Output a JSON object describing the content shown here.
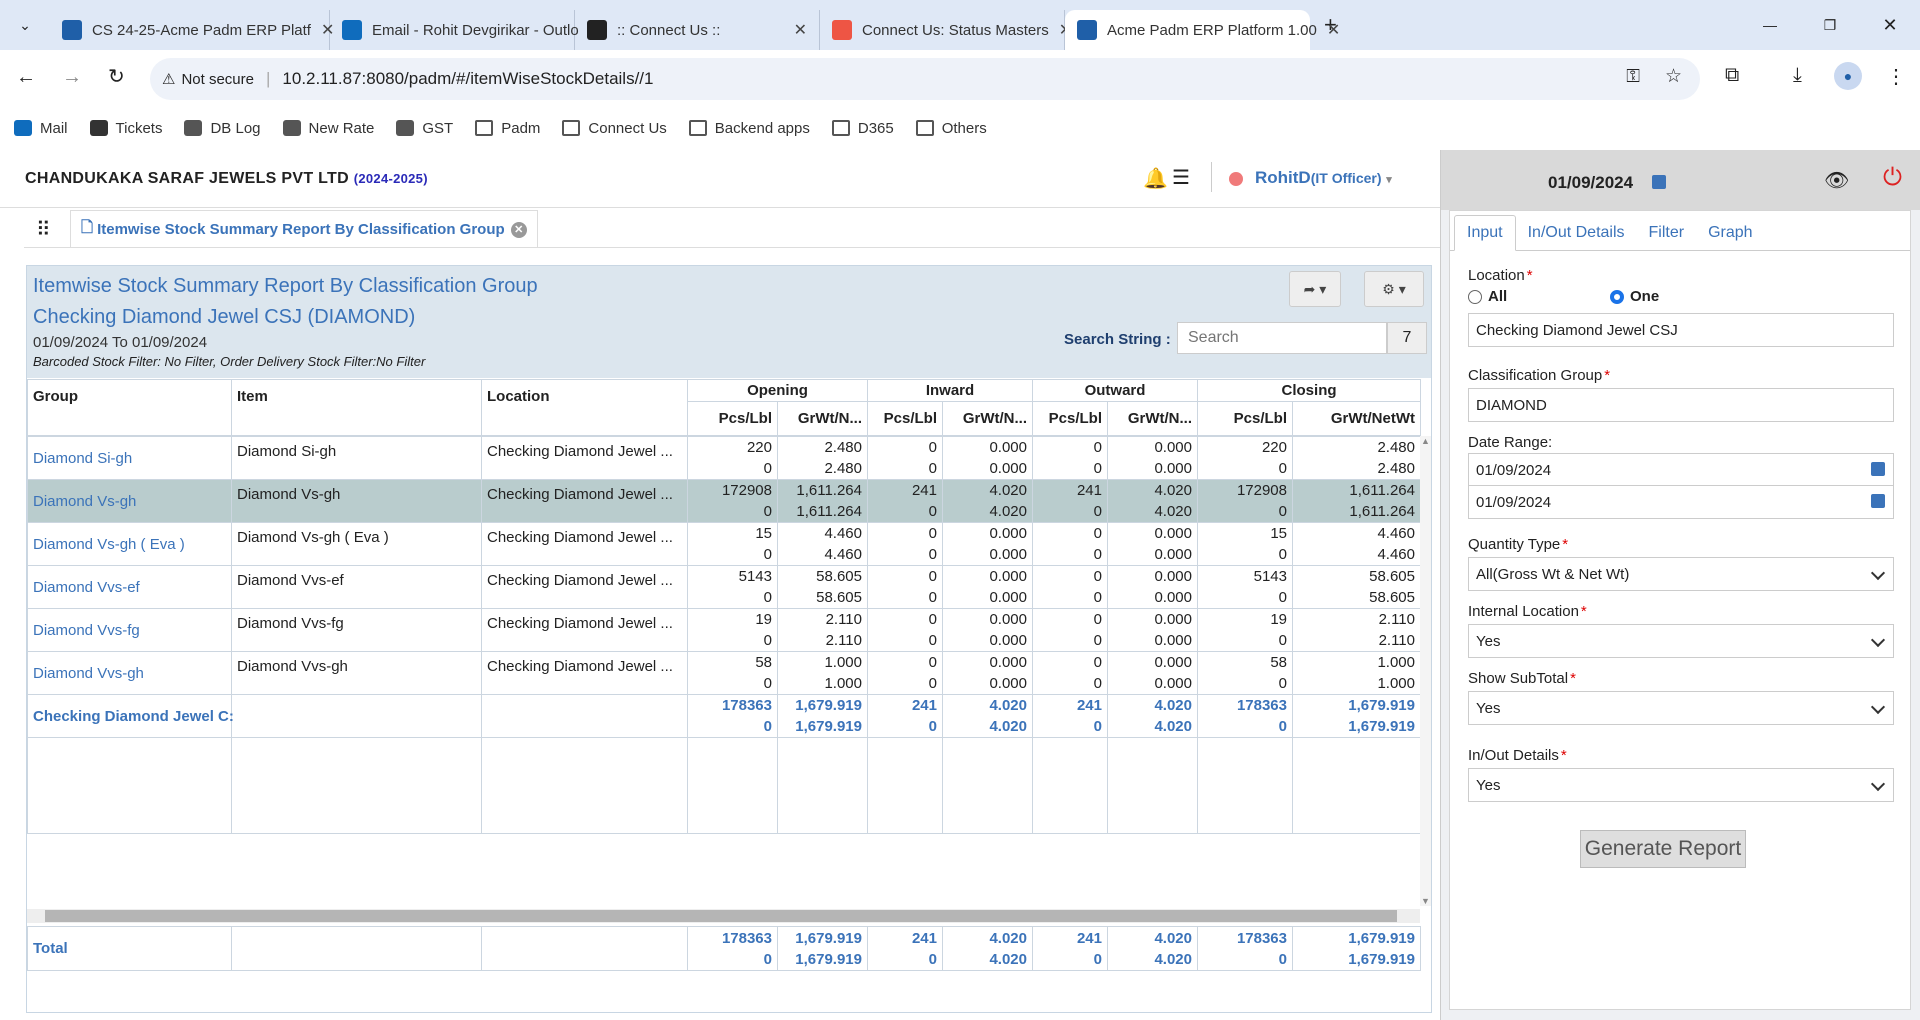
{
  "browser": {
    "tabs": [
      {
        "title": "CS 24-25-Acme Padm ERP Platf",
        "color": "#1f5fa8"
      },
      {
        "title": "Email - Rohit Devgirikar - Outlo",
        "color": "#0f6cbd"
      },
      {
        "title": ":: Connect Us ::",
        "color": "#222"
      },
      {
        "title": "Connect Us: Status Masters",
        "color": "#e54"
      },
      {
        "title": "Acme Padm ERP Platform 1.00",
        "color": "#1f5fa8"
      }
    ],
    "not_secure": "Not secure",
    "url": "10.2.11.87:8080/padm/#/itemWiseStockDetails//1",
    "bookmarks": [
      "Mail",
      "Tickets",
      "DB Log",
      "New Rate",
      "GST",
      "Padm",
      "Connect Us",
      "Backend apps",
      "D365",
      "Others"
    ]
  },
  "header": {
    "company": "CHANDUKAKA SARAF JEWELS PVT LTD",
    "year": "(2024-2025)",
    "user": "RohitD",
    "role": "(IT Officer)",
    "date": "01/09/2024"
  },
  "page_tab": "Itemwise Stock Summary Report By Classification Group",
  "report": {
    "title": "Itemwise Stock Summary Report By Classification Group",
    "subtitle": "Checking Diamond Jewel CSJ (DIAMOND)",
    "range": "01/09/2024 To 01/09/2024",
    "filter": "Barcoded Stock Filter: No Filter, Order Delivery Stock Filter:No Filter",
    "search_label": "Search String :",
    "search_placeholder": "Search",
    "count": "7"
  },
  "columns": {
    "group": "Group",
    "item": "Item",
    "location": "Location",
    "opening": "Opening",
    "inward": "Inward",
    "outward": "Outward",
    "closing": "Closing",
    "pcs": "Pcs/Lbl",
    "grwt_short": "GrWt/N...",
    "grwt_full": "GrWt/NetWt"
  },
  "rows": [
    {
      "group": "Diamond Si-gh",
      "item": "Diamond Si-gh",
      "location": "Checking Diamond Jewel ...",
      "v": [
        [
          "220",
          "0"
        ],
        [
          "2.480",
          "2.480"
        ],
        [
          "0",
          "0"
        ],
        [
          "0.000",
          "0.000"
        ],
        [
          "0",
          "0"
        ],
        [
          "0.000",
          "0.000"
        ],
        [
          "220",
          "0"
        ],
        [
          "2.480",
          "2.480"
        ]
      ]
    },
    {
      "group": "Diamond Vs-gh",
      "item": "Diamond Vs-gh",
      "location": "Checking Diamond Jewel ...",
      "v": [
        [
          "172908",
          "0"
        ],
        [
          "1,611.264",
          "1,611.264"
        ],
        [
          "241",
          "0"
        ],
        [
          "4.020",
          "4.020"
        ],
        [
          "241",
          "0"
        ],
        [
          "4.020",
          "4.020"
        ],
        [
          "172908",
          "0"
        ],
        [
          "1,611.264",
          "1,611.264"
        ]
      ]
    },
    {
      "group": "Diamond Vs-gh ( Eva )",
      "item": "Diamond Vs-gh ( Eva )",
      "location": "Checking Diamond Jewel ...",
      "v": [
        [
          "15",
          "0"
        ],
        [
          "4.460",
          "4.460"
        ],
        [
          "0",
          "0"
        ],
        [
          "0.000",
          "0.000"
        ],
        [
          "0",
          "0"
        ],
        [
          "0.000",
          "0.000"
        ],
        [
          "15",
          "0"
        ],
        [
          "4.460",
          "4.460"
        ]
      ]
    },
    {
      "group": "Diamond Vvs-ef",
      "item": "Diamond Vvs-ef",
      "location": "Checking Diamond Jewel ...",
      "v": [
        [
          "5143",
          "0"
        ],
        [
          "58.605",
          "58.605"
        ],
        [
          "0",
          "0"
        ],
        [
          "0.000",
          "0.000"
        ],
        [
          "0",
          "0"
        ],
        [
          "0.000",
          "0.000"
        ],
        [
          "5143",
          "0"
        ],
        [
          "58.605",
          "58.605"
        ]
      ]
    },
    {
      "group": "Diamond Vvs-fg",
      "item": "Diamond Vvs-fg",
      "location": "Checking Diamond Jewel ...",
      "v": [
        [
          "19",
          "0"
        ],
        [
          "2.110",
          "2.110"
        ],
        [
          "0",
          "0"
        ],
        [
          "0.000",
          "0.000"
        ],
        [
          "0",
          "0"
        ],
        [
          "0.000",
          "0.000"
        ],
        [
          "19",
          "0"
        ],
        [
          "2.110",
          "2.110"
        ]
      ]
    },
    {
      "group": "Diamond Vvs-gh",
      "item": "Diamond Vvs-gh",
      "location": "Checking Diamond Jewel ...",
      "v": [
        [
          "58",
          "0"
        ],
        [
          "1.000",
          "1.000"
        ],
        [
          "0",
          "0"
        ],
        [
          "0.000",
          "0.000"
        ],
        [
          "0",
          "0"
        ],
        [
          "0.000",
          "0.000"
        ],
        [
          "58",
          "0"
        ],
        [
          "1.000",
          "1.000"
        ]
      ]
    }
  ],
  "subtotal": {
    "label": "Checking Diamond Jewel C:",
    "v": [
      [
        "178363",
        "0"
      ],
      [
        "1,679.919",
        "1,679.919"
      ],
      [
        "241",
        "0"
      ],
      [
        "4.020",
        "4.020"
      ],
      [
        "241",
        "0"
      ],
      [
        "4.020",
        "4.020"
      ],
      [
        "178363",
        "0"
      ],
      [
        "1,679.919",
        "1,679.919"
      ]
    ]
  },
  "total": {
    "label": "Total",
    "v": [
      [
        "178363",
        "0"
      ],
      [
        "1,679.919",
        "1,679.919"
      ],
      [
        "241",
        "0"
      ],
      [
        "4.020",
        "4.020"
      ],
      [
        "241",
        "0"
      ],
      [
        "4.020",
        "4.020"
      ],
      [
        "178363",
        "0"
      ],
      [
        "1,679.919",
        "1,679.919"
      ]
    ]
  },
  "panel": {
    "tabs": [
      "Input",
      "In/Out Details",
      "Filter",
      "Graph"
    ],
    "location_label": "Location",
    "all": "All",
    "one": "One",
    "location_value": "Checking Diamond Jewel CSJ",
    "class_label": "Classification Group",
    "class_value": "DIAMOND",
    "date_label": "Date Range:",
    "date_from": "01/09/2024",
    "date_to": "01/09/2024",
    "qty_label": "Quantity Type",
    "qty_value": "All(Gross Wt & Net Wt)",
    "internal_label": "Internal Location",
    "internal_value": "Yes",
    "subtotal_label": "Show SubTotal",
    "subtotal_value": "Yes",
    "inout_label": "In/Out Details",
    "inout_value": "Yes",
    "generate": "Generate Report"
  }
}
